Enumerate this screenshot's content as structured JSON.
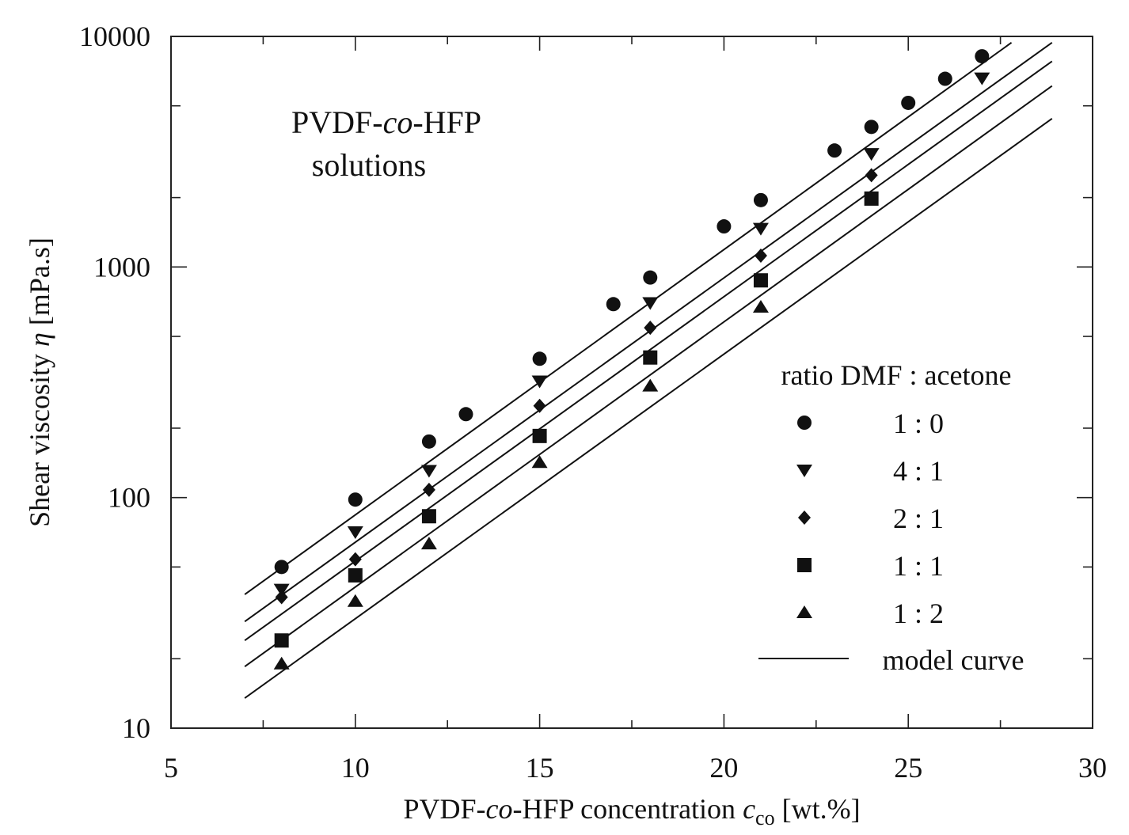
{
  "chart_data": {
    "type": "scatter",
    "annotation": {
      "line1_prefix": "PVDF-",
      "line1_italic": "co",
      "line1_suffix": "-HFP",
      "line2": "solutions"
    },
    "xlabel": {
      "prefix": "PVDF-",
      "italic": "co",
      "middle": "-HFP concentration ",
      "symbol": "c",
      "subscript": "co",
      "suffix": " [wt.%]"
    },
    "ylabel": {
      "prefix": "Shear viscosity ",
      "symbol": "η",
      "suffix": " [mPa.s]"
    },
    "xlim": [
      5,
      30
    ],
    "ylim": [
      10,
      10000
    ],
    "yscale": "log",
    "xticks": [
      5,
      10,
      15,
      20,
      25,
      30
    ],
    "xtick_labels": [
      "5",
      "10",
      "15",
      "20",
      "25",
      "30"
    ],
    "yticks": [
      10,
      100,
      1000,
      10000
    ],
    "ytick_labels": [
      "10",
      "100",
      "1000",
      "10000"
    ],
    "grid": false,
    "legend": {
      "title": "ratio DMF : acetone",
      "placement": "lower-right",
      "model_label": "model curve"
    },
    "series": [
      {
        "name": "1 : 0",
        "marker": "circle",
        "x": [
          8,
          10,
          12,
          13,
          15,
          17,
          18,
          20,
          21,
          23,
          24,
          25,
          26,
          27
        ],
        "y": [
          50,
          98,
          175,
          230,
          400,
          690,
          900,
          1500,
          1950,
          3200,
          4050,
          5150,
          6550,
          8200
        ],
        "model": [
          [
            7,
            38
          ],
          [
            27.8,
            9400
          ]
        ]
      },
      {
        "name": "4 : 1",
        "marker": "triangle-down",
        "x": [
          8,
          10,
          12,
          15,
          18,
          21,
          24,
          27
        ],
        "y": [
          40,
          71,
          131,
          320,
          700,
          1470,
          3100,
          6600
        ],
        "model": [
          [
            7,
            29
          ],
          [
            28.9,
            9400
          ]
        ]
      },
      {
        "name": "2 : 1",
        "marker": "diamond",
        "x": [
          8,
          10,
          12,
          15,
          18,
          21,
          24
        ],
        "y": [
          37,
          54,
          108,
          250,
          545,
          1120,
          2500
        ],
        "model": [
          [
            7,
            24
          ],
          [
            28.9,
            7800
          ]
        ]
      },
      {
        "name": "1 : 1",
        "marker": "square",
        "x": [
          8,
          10,
          12,
          15,
          18,
          21,
          24
        ],
        "y": [
          24,
          46,
          83,
          185,
          405,
          875,
          1980
        ],
        "model": [
          [
            7,
            18.5
          ],
          [
            28.9,
            6100
          ]
        ]
      },
      {
        "name": "1 : 2",
        "marker": "triangle-up",
        "x": [
          8,
          10,
          12,
          15,
          18,
          21
        ],
        "y": [
          19,
          35.5,
          63,
          142,
          305,
          670
        ],
        "model": [
          [
            7,
            13.5
          ],
          [
            28.9,
            4400
          ]
        ]
      }
    ]
  }
}
